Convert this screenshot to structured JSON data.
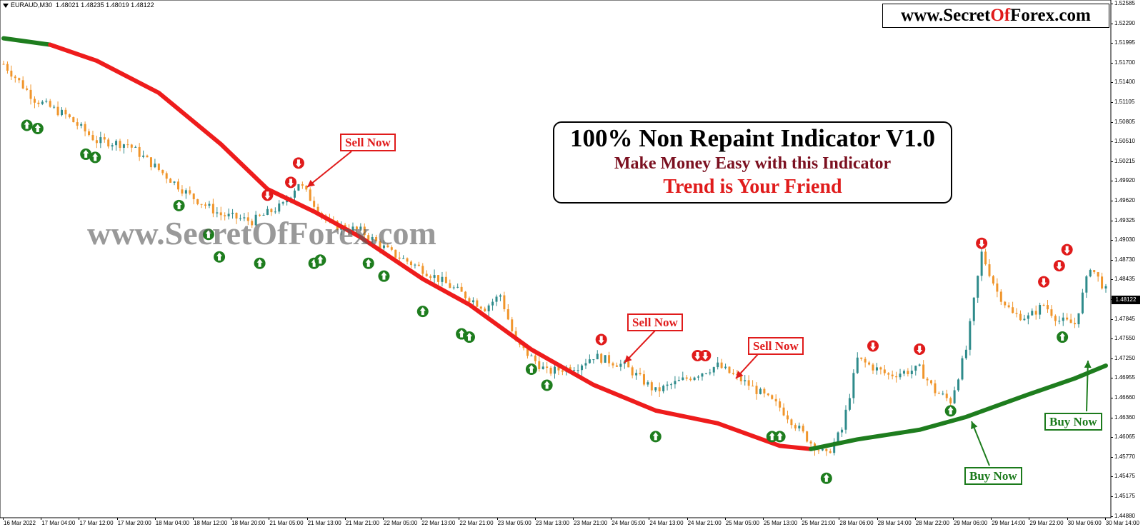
{
  "symbol_header": {
    "symbol": "EURAUD,M30",
    "ohlc": "1.48021 1.48235 1.48019 1.48122"
  },
  "brand": {
    "prefix": "www.Secret",
    "accent": "Of",
    "suffix": "Forex.com",
    "accent_color": "#e01b1b"
  },
  "info_box": {
    "line1": "100% Non Repaint Indicator V1.0",
    "line2": "Make Money Easy with this Indicator",
    "line3": "Trend is Your Friend"
  },
  "watermark": "www.SecretOfForex.com",
  "signals": [
    {
      "type": "sell",
      "label": "Sell Now"
    },
    {
      "type": "sell",
      "label": "Sell Now"
    },
    {
      "type": "sell",
      "label": "Sell Now"
    },
    {
      "type": "buy",
      "label": "Buy Now"
    },
    {
      "type": "buy",
      "label": "Buy Now"
    }
  ],
  "price_axis": {
    "labels": [
      "1.52585",
      "1.52290",
      "1.51995",
      "1.51700",
      "1.51400",
      "1.51105",
      "1.50805",
      "1.50510",
      "1.50215",
      "1.49920",
      "1.49620",
      "1.49325",
      "1.49030",
      "1.48730",
      "1.48435",
      "1.48140",
      "1.47845",
      "1.47550",
      "1.47250",
      "1.46955",
      "1.46660",
      "1.46360",
      "1.46065",
      "1.45770",
      "1.45475",
      "1.45175",
      "1.44880"
    ],
    "current_price": "1.48122"
  },
  "time_axis": {
    "labels": [
      "16 Mar 2022",
      "17 Mar 04:00",
      "17 Mar 12:00",
      "17 Mar 20:00",
      "18 Mar 04:00",
      "18 Mar 12:00",
      "18 Mar 20:00",
      "21 Mar 05:00",
      "21 Mar 13:00",
      "21 Mar 21:00",
      "22 Mar 05:00",
      "22 Mar 13:00",
      "22 Mar 21:00",
      "23 Mar 05:00",
      "23 Mar 13:00",
      "23 Mar 21:00",
      "24 Mar 05:00",
      "24 Mar 13:00",
      "24 Mar 21:00",
      "25 Mar 05:00",
      "25 Mar 13:00",
      "25 Mar 21:00",
      "28 Mar 06:00",
      "28 Mar 14:00",
      "28 Mar 22:00",
      "29 Mar 06:00",
      "29 Mar 14:00",
      "29 Mar 22:00",
      "30 Mar 06:00",
      "30 Mar 14:00"
    ]
  },
  "colors": {
    "bull_candle": "#2e8b8b",
    "bear_candle": "#f0952b",
    "trend_down": "#ee1c1c",
    "trend_up": "#1e7d1e",
    "buy_arrow": "#1e7d1e",
    "sell_arrow": "#e01b1b"
  },
  "chart_data": {
    "type": "candlestick",
    "symbol": "EURAUD",
    "timeframe": "M30",
    "ylim": [
      1.4488,
      1.5258
    ],
    "trend_line": {
      "segments": [
        {
          "color": "up",
          "points": [
            [
              0,
              1.5205
            ],
            [
              3,
              1.5195
            ]
          ]
        },
        {
          "color": "down",
          "points": [
            [
              3,
              1.5195
            ],
            [
              6,
              1.517
            ],
            [
              10,
              1.512
            ],
            [
              14,
              1.504
            ],
            [
              17,
              1.497
            ],
            [
              20,
              1.4935
            ],
            [
              23,
              1.4895
            ],
            [
              27,
              1.483
            ],
            [
              30,
              1.479
            ],
            [
              34,
              1.472
            ],
            [
              38,
              1.4665
            ],
            [
              42,
              1.4625
            ],
            [
              46,
              1.4605
            ],
            [
              50,
              1.457
            ],
            [
              52,
              1.4565
            ]
          ]
        },
        {
          "color": "up",
          "points": [
            [
              52,
              1.4565
            ],
            [
              55,
              1.458
            ],
            [
              59,
              1.4595
            ],
            [
              62,
              1.4615
            ],
            [
              66,
              1.465
            ],
            [
              69,
              1.4675
            ],
            [
              71,
              1.4695
            ]
          ]
        }
      ]
    },
    "price_path": [
      [
        0,
        1.5165
      ],
      [
        2,
        1.511
      ],
      [
        4,
        1.5085
      ],
      [
        6,
        1.5045
      ],
      [
        8,
        1.504
      ],
      [
        10,
        1.5
      ],
      [
        12,
        1.496
      ],
      [
        14,
        1.493
      ],
      [
        16,
        1.492
      ],
      [
        18,
        1.4945
      ],
      [
        19,
        1.498
      ],
      [
        21,
        1.4915
      ],
      [
        23,
        1.4905
      ],
      [
        25,
        1.487
      ],
      [
        27,
        1.4845
      ],
      [
        29,
        1.4815
      ],
      [
        31,
        1.4785
      ],
      [
        32,
        1.4805
      ],
      [
        33,
        1.473
      ],
      [
        35,
        1.4685
      ],
      [
        37,
        1.4695
      ],
      [
        38,
        1.471
      ],
      [
        40,
        1.4695
      ],
      [
        42,
        1.4655
      ],
      [
        44,
        1.4675
      ],
      [
        46,
        1.4695
      ],
      [
        48,
        1.4665
      ],
      [
        50,
        1.463
      ],
      [
        52,
        1.4575
      ],
      [
        53,
        1.4555
      ],
      [
        54,
        1.4595
      ],
      [
        55,
        1.4705
      ],
      [
        57,
        1.468
      ],
      [
        59,
        1.469
      ],
      [
        60,
        1.4655
      ],
      [
        61,
        1.464
      ],
      [
        62,
        1.472
      ],
      [
        63,
        1.487
      ],
      [
        64,
        1.481
      ],
      [
        65,
        1.4775
      ],
      [
        66,
        1.477
      ],
      [
        67,
        1.479
      ],
      [
        68,
        1.4765
      ],
      [
        69,
        1.476
      ],
      [
        70,
        1.485
      ],
      [
        71,
        1.4812
      ]
    ],
    "sell_arrows": [
      [
        19,
        1.4995
      ],
      [
        18.5,
        1.4965
      ],
      [
        17,
        1.4945
      ],
      [
        38.5,
        1.472
      ],
      [
        44.7,
        1.4695
      ],
      [
        45.2,
        1.4695
      ],
      [
        56,
        1.471
      ],
      [
        59,
        1.4705
      ],
      [
        63,
        1.487
      ],
      [
        67,
        1.481
      ],
      [
        68.5,
        1.486
      ],
      [
        68,
        1.4835
      ]
    ],
    "buy_arrows": [
      [
        1.5,
        1.5085
      ],
      [
        2.2,
        1.508
      ],
      [
        5.3,
        1.504
      ],
      [
        5.9,
        1.5035
      ],
      [
        11.3,
        1.496
      ],
      [
        13.2,
        1.4915
      ],
      [
        13.9,
        1.488
      ],
      [
        16.5,
        1.487
      ],
      [
        20,
        1.487
      ],
      [
        20.4,
        1.4875
      ],
      [
        23.5,
        1.487
      ],
      [
        24.5,
        1.485
      ],
      [
        27,
        1.4795
      ],
      [
        29.5,
        1.476
      ],
      [
        30,
        1.4755
      ],
      [
        34,
        1.4705
      ],
      [
        35,
        1.468
      ],
      [
        42,
        1.46
      ],
      [
        49.5,
        1.46
      ],
      [
        50,
        1.46
      ],
      [
        53,
        1.4535
      ],
      [
        61,
        1.464
      ],
      [
        68.2,
        1.4755
      ]
    ]
  }
}
